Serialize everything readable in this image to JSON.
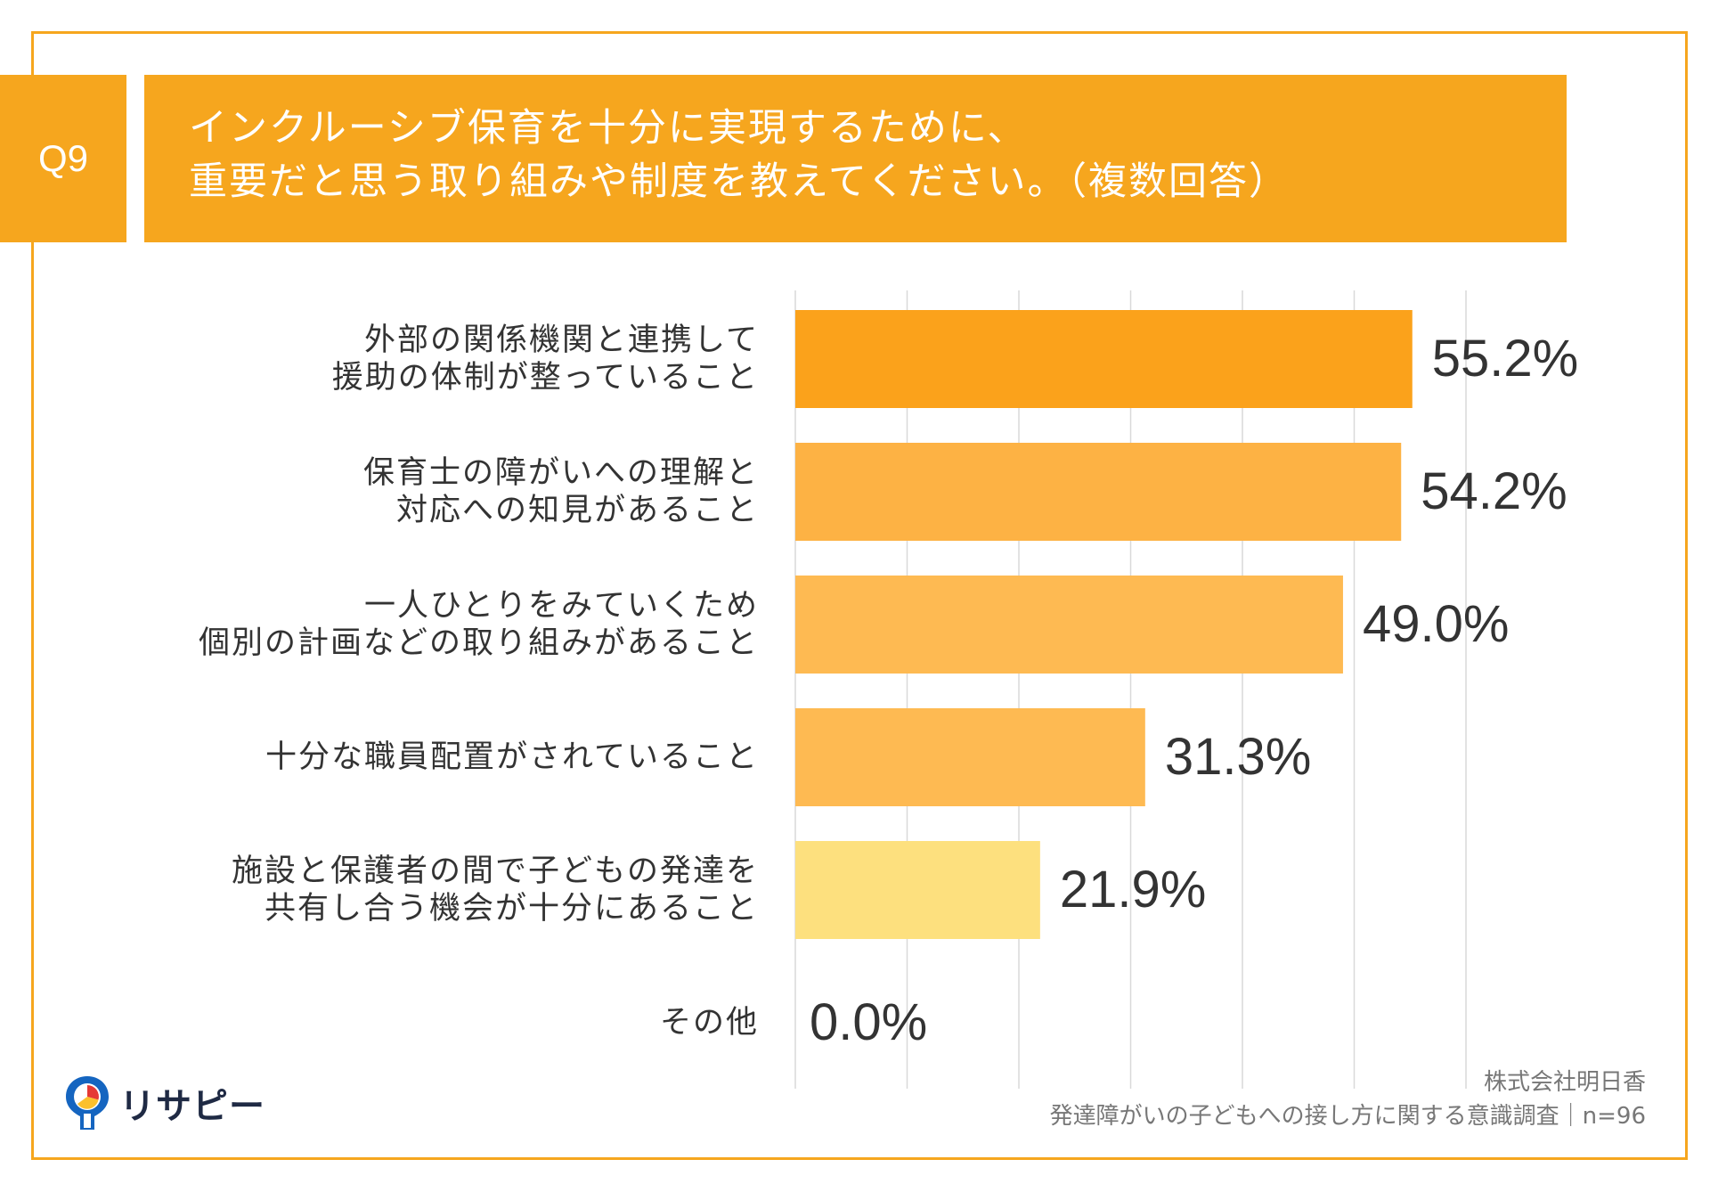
{
  "question_badge": "Q9",
  "title_lines": [
    "インクルーシブ保育を十分に実現するために、",
    "重要だと思う取り組みや制度を教えてください。（複数回答）"
  ],
  "chart_data": {
    "type": "bar",
    "orientation": "horizontal",
    "categories": [
      [
        "外部の関係機関と連携して",
        "援助の体制が整っていること"
      ],
      [
        "保育士の障がいへの理解と",
        "対応への知見があること"
      ],
      [
        "一人ひとりをみていくため",
        "個別の計画などの取り組みがあること"
      ],
      [
        "十分な職員配置がされていること"
      ],
      [
        "施設と保護者の間で子どもの発達を",
        "共有し合う機会が十分にあること"
      ],
      [
        "その他"
      ]
    ],
    "values": [
      55.2,
      54.2,
      49.0,
      31.3,
      21.9,
      0.0
    ],
    "value_labels": [
      "55.2%",
      "54.2%",
      "49.0%",
      "31.3%",
      "21.9%",
      "0.0%"
    ],
    "bar_colors": [
      "#fba21b",
      "#fdb244",
      "#feba52",
      "#feba52",
      "#fde07e",
      "#fde07e"
    ],
    "xlim": [
      0,
      60
    ],
    "grid": true,
    "axis_labels_shown": false
  },
  "logo": {
    "text": "リサピー",
    "icon": "map-pin-pie-icon",
    "colors": [
      "#1565c0",
      "#e53935",
      "#fbc02d"
    ]
  },
  "source": {
    "line1": "株式会社明日香",
    "line2": "発達障がいの子どもへの接し方に関する意識調査｜n=96"
  },
  "colors": {
    "accent": "#f6a61e",
    "grid": "#d9d9d9",
    "text": "#333333"
  }
}
